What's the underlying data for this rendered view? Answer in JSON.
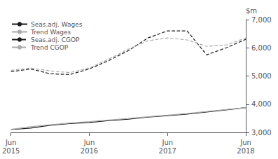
{
  "chart_data": {
    "type": "line",
    "ylabel": "$m",
    "categories": [
      "Jun\n2015",
      null,
      null,
      null,
      "Jun\n2016",
      null,
      null,
      null,
      "Jun\n2017",
      null,
      null,
      null,
      "Jun\n2018"
    ],
    "series": [
      {
        "name": "Seas.adj. Wages",
        "color": "#1a1a1a",
        "line_style": "solid",
        "values": [
          3100,
          3150,
          3250,
          3310,
          3350,
          3420,
          3470,
          3540,
          3590,
          3650,
          3720,
          3800,
          3880
        ]
      },
      {
        "name": "Trend Wages",
        "color": "#aaaaaa",
        "line_style": "solid",
        "values": [
          3110,
          3200,
          3270,
          3330,
          3380,
          3440,
          3495,
          3555,
          3610,
          3670,
          3740,
          3810,
          3880
        ]
      },
      {
        "name": "Seas.adj. CGOP",
        "color": "#1a1a1a",
        "line_style": "dashed",
        "values": [
          5150,
          5250,
          5080,
          5050,
          5250,
          5550,
          5900,
          6350,
          6600,
          6600,
          5750,
          6000,
          6300
        ]
      },
      {
        "name": "Trend CGOP",
        "color": "#aaaaaa",
        "line_style": "dashed",
        "values": [
          5200,
          5280,
          5180,
          5120,
          5280,
          5600,
          5950,
          6250,
          6350,
          6280,
          6050,
          6100,
          6350
        ]
      }
    ],
    "ylim": [
      3000,
      7000
    ],
    "yticks": [
      3000,
      4000,
      5000,
      6000,
      7000
    ],
    "grid": false,
    "legend": "upper left"
  }
}
